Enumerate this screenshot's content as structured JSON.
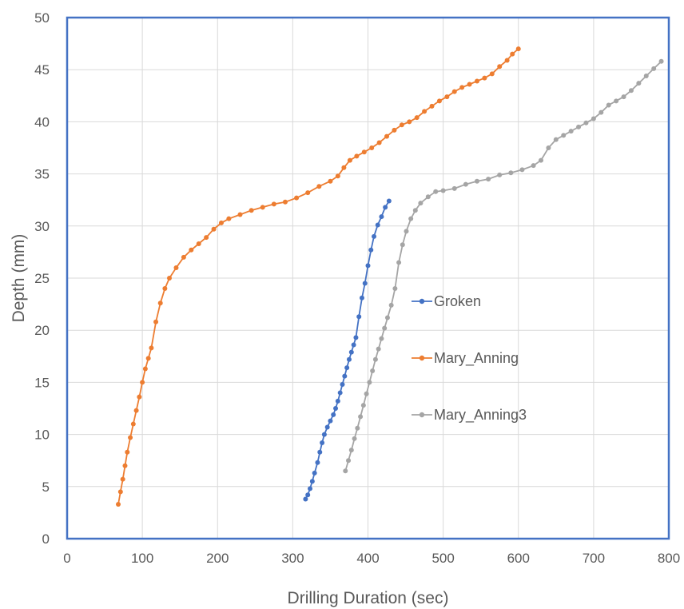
{
  "chart_data": {
    "type": "scatter",
    "title": "",
    "xlabel": "Drilling Duration (sec)",
    "ylabel": "Depth (mm)",
    "xlim": [
      0,
      800
    ],
    "ylim": [
      0,
      50
    ],
    "x_ticks": [
      0,
      100,
      200,
      300,
      400,
      500,
      600,
      700,
      800
    ],
    "y_ticks": [
      0,
      5,
      10,
      15,
      20,
      25,
      30,
      35,
      40,
      45,
      50
    ],
    "grid": true,
    "legend_position": "right-center inside plot",
    "series": [
      {
        "name": "Groken",
        "color": "#4472c4",
        "points": [
          [
            317,
            3.8
          ],
          [
            320,
            4.2
          ],
          [
            323,
            4.8
          ],
          [
            326,
            5.5
          ],
          [
            329,
            6.3
          ],
          [
            333,
            7.3
          ],
          [
            336,
            8.3
          ],
          [
            339,
            9.2
          ],
          [
            342,
            10.0
          ],
          [
            346,
            10.7
          ],
          [
            350,
            11.3
          ],
          [
            354,
            11.9
          ],
          [
            357,
            12.5
          ],
          [
            360,
            13.2
          ],
          [
            363,
            14.0
          ],
          [
            366,
            14.8
          ],
          [
            369,
            15.6
          ],
          [
            372,
            16.4
          ],
          [
            375,
            17.2
          ],
          [
            378,
            17.9
          ],
          [
            381,
            18.6
          ],
          [
            384,
            19.3
          ],
          [
            388,
            21.3
          ],
          [
            392,
            23.1
          ],
          [
            396,
            24.5
          ],
          [
            400,
            26.2
          ],
          [
            404,
            27.7
          ],
          [
            408,
            29.0
          ],
          [
            413,
            30.1
          ],
          [
            418,
            30.9
          ],
          [
            423,
            31.8
          ],
          [
            428,
            32.4
          ]
        ]
      },
      {
        "name": "Mary_Anning",
        "color": "#ed7d31",
        "points": [
          [
            68,
            3.3
          ],
          [
            71,
            4.5
          ],
          [
            74,
            5.7
          ],
          [
            77,
            7.0
          ],
          [
            80,
            8.3
          ],
          [
            84,
            9.7
          ],
          [
            88,
            11.0
          ],
          [
            92,
            12.3
          ],
          [
            96,
            13.6
          ],
          [
            100,
            15.0
          ],
          [
            104,
            16.3
          ],
          [
            108,
            17.3
          ],
          [
            112,
            18.3
          ],
          [
            118,
            20.8
          ],
          [
            124,
            22.6
          ],
          [
            130,
            24.0
          ],
          [
            136,
            25.0
          ],
          [
            145,
            26.0
          ],
          [
            155,
            27.0
          ],
          [
            165,
            27.7
          ],
          [
            175,
            28.3
          ],
          [
            185,
            28.9
          ],
          [
            195,
            29.7
          ],
          [
            205,
            30.3
          ],
          [
            215,
            30.7
          ],
          [
            230,
            31.1
          ],
          [
            245,
            31.5
          ],
          [
            260,
            31.8
          ],
          [
            275,
            32.1
          ],
          [
            290,
            32.3
          ],
          [
            305,
            32.7
          ],
          [
            320,
            33.2
          ],
          [
            335,
            33.8
          ],
          [
            350,
            34.3
          ],
          [
            360,
            34.8
          ],
          [
            368,
            35.6
          ],
          [
            376,
            36.3
          ],
          [
            385,
            36.7
          ],
          [
            395,
            37.1
          ],
          [
            405,
            37.5
          ],
          [
            415,
            38.0
          ],
          [
            425,
            38.6
          ],
          [
            435,
            39.2
          ],
          [
            445,
            39.7
          ],
          [
            455,
            40.0
          ],
          [
            465,
            40.4
          ],
          [
            475,
            41.0
          ],
          [
            485,
            41.5
          ],
          [
            495,
            42.0
          ],
          [
            505,
            42.4
          ],
          [
            515,
            42.9
          ],
          [
            525,
            43.3
          ],
          [
            535,
            43.6
          ],
          [
            545,
            43.9
          ],
          [
            555,
            44.2
          ],
          [
            565,
            44.6
          ],
          [
            575,
            45.3
          ],
          [
            585,
            45.9
          ],
          [
            592,
            46.5
          ],
          [
            600,
            47.0
          ]
        ]
      },
      {
        "name": "Mary_Anning3",
        "color": "#a5a5a5",
        "points": [
          [
            370,
            6.5
          ],
          [
            374,
            7.5
          ],
          [
            378,
            8.5
          ],
          [
            382,
            9.6
          ],
          [
            386,
            10.6
          ],
          [
            390,
            11.7
          ],
          [
            394,
            12.8
          ],
          [
            398,
            13.9
          ],
          [
            402,
            15.0
          ],
          [
            406,
            16.1
          ],
          [
            410,
            17.2
          ],
          [
            414,
            18.2
          ],
          [
            418,
            19.2
          ],
          [
            422,
            20.2
          ],
          [
            426,
            21.2
          ],
          [
            431,
            22.4
          ],
          [
            436,
            24.0
          ],
          [
            441,
            26.5
          ],
          [
            446,
            28.2
          ],
          [
            451,
            29.5
          ],
          [
            457,
            30.7
          ],
          [
            463,
            31.5
          ],
          [
            470,
            32.2
          ],
          [
            480,
            32.8
          ],
          [
            490,
            33.3
          ],
          [
            500,
            33.4
          ],
          [
            515,
            33.6
          ],
          [
            530,
            34.0
          ],
          [
            545,
            34.3
          ],
          [
            560,
            34.5
          ],
          [
            575,
            34.9
          ],
          [
            590,
            35.1
          ],
          [
            605,
            35.4
          ],
          [
            620,
            35.8
          ],
          [
            630,
            36.3
          ],
          [
            640,
            37.5
          ],
          [
            650,
            38.3
          ],
          [
            660,
            38.7
          ],
          [
            670,
            39.1
          ],
          [
            680,
            39.5
          ],
          [
            690,
            39.9
          ],
          [
            700,
            40.3
          ],
          [
            710,
            40.9
          ],
          [
            720,
            41.6
          ],
          [
            730,
            42.0
          ],
          [
            740,
            42.4
          ],
          [
            750,
            43.0
          ],
          [
            760,
            43.7
          ],
          [
            770,
            44.4
          ],
          [
            780,
            45.1
          ],
          [
            790,
            45.8
          ]
        ]
      }
    ]
  }
}
